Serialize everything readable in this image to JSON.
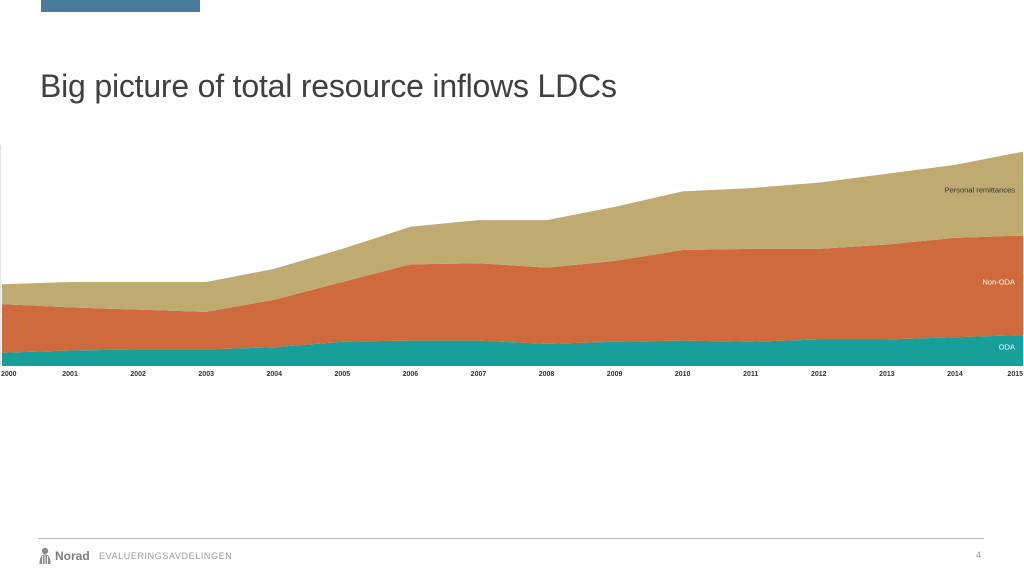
{
  "slide": {
    "title": "Big picture of total resource inflows LDCs"
  },
  "footer": {
    "logo_text": "Norad",
    "department": "EVALUERINGSAVDELINGEN",
    "page_number": "4"
  },
  "colors": {
    "title_bar": "#4a7a9c",
    "personal_remittances": "#bfab72",
    "non_oda": "#cf6a3c",
    "oda": "#17a09b"
  },
  "chart_data": {
    "type": "area",
    "stacked": true,
    "title": "",
    "xlabel": "",
    "ylabel": "",
    "x": [
      "2000",
      "2001",
      "2002",
      "2003",
      "2004",
      "2005",
      "2006",
      "2007",
      "2008",
      "2009",
      "2010",
      "2011",
      "2012",
      "2013",
      "2014",
      "2015"
    ],
    "ylim": [
      0,
      100
    ],
    "grid": false,
    "legend": "inline-right",
    "series": [
      {
        "name": "ODA",
        "color": "#17a09b",
        "values": [
          6,
          7,
          7.5,
          7.5,
          8.5,
          11,
          11.5,
          11.5,
          10,
          11,
          11.5,
          11,
          12,
          12,
          13,
          14
        ]
      },
      {
        "name": "Non-ODA",
        "color": "#cf6a3c",
        "values": [
          22,
          19.5,
          18,
          17,
          21.5,
          27,
          34.5,
          35,
          34.5,
          36.5,
          41,
          42,
          41,
          43,
          45,
          45
        ]
      },
      {
        "name": "Personal remittances",
        "color": "#bfab72",
        "values": [
          9,
          11.5,
          12.5,
          13.5,
          14,
          15,
          17,
          19.5,
          21.5,
          24.5,
          26.5,
          27.5,
          30,
          32,
          33,
          38
        ]
      }
    ]
  }
}
